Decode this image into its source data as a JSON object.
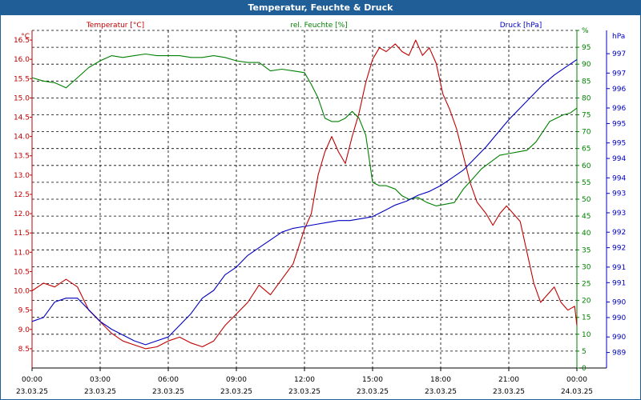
{
  "window": {
    "title": "Temperatur, Feuchte & Druck"
  },
  "colors": {
    "temperature": "#c00000",
    "humidity": "#008000",
    "pressure": "#0000c0",
    "grid": "#000000",
    "text": "#000000",
    "title_bg": "#1f5e96"
  },
  "chart_data": {
    "type": "line",
    "title": "Temperatur, Feuchte & Druck",
    "grid": true,
    "x_ticks": [
      {
        "h": 0,
        "time": "00:00",
        "date": "23.03.25"
      },
      {
        "h": 3,
        "time": "03:00",
        "date": "23.03.25"
      },
      {
        "h": 6,
        "time": "06:00",
        "date": "23.03.25"
      },
      {
        "h": 9,
        "time": "09:00",
        "date": "23.03.25"
      },
      {
        "h": 12,
        "time": "12:00",
        "date": "23.03.25"
      },
      {
        "h": 15,
        "time": "15:00",
        "date": "23.03.25"
      },
      {
        "h": 18,
        "time": "18:00",
        "date": "23.03.25"
      },
      {
        "h": 21,
        "time": "21:00",
        "date": "23.03.25"
      },
      {
        "h": 24,
        "time": "00:00",
        "date": "24.03.25"
      }
    ],
    "axes": {
      "temperature": {
        "label": "Temperatur [°C]",
        "unit": "°C",
        "range": [
          8.0,
          16.75
        ],
        "ticks": [
          "8.5",
          "9.0",
          "9.5",
          "10.0",
          "10.5",
          "11.0",
          "11.5",
          "12.0",
          "12.5",
          "13.0",
          "13.5",
          "14.0",
          "14.5",
          "15.0",
          "15.5",
          "16.0",
          "16.5"
        ],
        "tick_values": [
          8.5,
          9.0,
          9.5,
          10.0,
          10.5,
          11.0,
          11.5,
          12.0,
          12.5,
          13.0,
          13.5,
          14.0,
          14.5,
          15.0,
          15.5,
          16.0,
          16.5
        ]
      },
      "humidity": {
        "label": "rel. Feuchte [%]",
        "unit": "%",
        "range": [
          0,
          100
        ],
        "ticks": [
          "0",
          "5",
          "10",
          "15",
          "20",
          "25",
          "30",
          "35",
          "40",
          "45",
          "50",
          "55",
          "60",
          "65",
          "70",
          "75",
          "80",
          "85",
          "90",
          "95",
          "%"
        ],
        "tick_values": [
          0,
          5,
          10,
          15,
          20,
          25,
          30,
          35,
          40,
          45,
          50,
          55,
          60,
          65,
          70,
          75,
          80,
          85,
          90,
          95,
          100
        ]
      },
      "pressure": {
        "label": "Druck [hPa]",
        "unit": "hPa",
        "range": [
          988.8,
          997.5
        ],
        "ticks": [
          "989",
          "990",
          "990",
          "990",
          "991",
          "991",
          "992",
          "992",
          "993",
          "993",
          "994",
          "994",
          "995",
          "995",
          "996",
          "996",
          "997",
          "997"
        ],
        "tick_values": [
          989.2,
          989.6,
          990.1,
          990.5,
          991.0,
          991.4,
          991.9,
          992.3,
          992.8,
          993.3,
          993.7,
          994.2,
          994.6,
          995.1,
          995.5,
          996.0,
          996.4,
          996.9
        ],
        "unit_label": "hPa"
      }
    },
    "series": [
      {
        "name": "Temperatur",
        "axis": "temperature",
        "points": [
          [
            0,
            10.0
          ],
          [
            0.5,
            10.2
          ],
          [
            1,
            10.1
          ],
          [
            1.5,
            10.3
          ],
          [
            2,
            10.1
          ],
          [
            2.5,
            9.5
          ],
          [
            3,
            9.2
          ],
          [
            3.5,
            8.9
          ],
          [
            4,
            8.7
          ],
          [
            4.5,
            8.6
          ],
          [
            5,
            8.5
          ],
          [
            5.5,
            8.55
          ],
          [
            6,
            8.7
          ],
          [
            6.5,
            8.8
          ],
          [
            7,
            8.65
          ],
          [
            7.5,
            8.55
          ],
          [
            8,
            8.7
          ],
          [
            8.5,
            9.1
          ],
          [
            9,
            9.4
          ],
          [
            9.5,
            9.7
          ],
          [
            10,
            10.15
          ],
          [
            10.5,
            9.9
          ],
          [
            11,
            10.3
          ],
          [
            11.5,
            10.7
          ],
          [
            12,
            11.6
          ],
          [
            12.3,
            12.0
          ],
          [
            12.6,
            13.0
          ],
          [
            12.9,
            13.6
          ],
          [
            13.2,
            14.0
          ],
          [
            13.5,
            13.6
          ],
          [
            13.8,
            13.3
          ],
          [
            14.1,
            14.0
          ],
          [
            14.4,
            14.6
          ],
          [
            14.7,
            15.4
          ],
          [
            15,
            16.0
          ],
          [
            15.3,
            16.3
          ],
          [
            15.6,
            16.2
          ],
          [
            16,
            16.4
          ],
          [
            16.3,
            16.2
          ],
          [
            16.6,
            16.1
          ],
          [
            16.9,
            16.5
          ],
          [
            17.2,
            16.1
          ],
          [
            17.5,
            16.3
          ],
          [
            17.8,
            15.9
          ],
          [
            18.1,
            15.1
          ],
          [
            18.4,
            14.7
          ],
          [
            18.7,
            14.2
          ],
          [
            19,
            13.5
          ],
          [
            19.3,
            12.8
          ],
          [
            19.6,
            12.3
          ],
          [
            20,
            12.0
          ],
          [
            20.3,
            11.7
          ],
          [
            20.6,
            12.0
          ],
          [
            20.9,
            12.2
          ],
          [
            21.2,
            12.0
          ],
          [
            21.5,
            11.8
          ],
          [
            21.8,
            11.0
          ],
          [
            22.1,
            10.2
          ],
          [
            22.4,
            9.7
          ],
          [
            22.7,
            9.9
          ],
          [
            23,
            10.1
          ],
          [
            23.3,
            9.7
          ],
          [
            23.6,
            9.5
          ],
          [
            23.9,
            9.6
          ],
          [
            24,
            9.1
          ]
        ]
      },
      {
        "name": "rel. Feuchte",
        "axis": "humidity",
        "points": [
          [
            0,
            86
          ],
          [
            0.5,
            85
          ],
          [
            1,
            84.5
          ],
          [
            1.5,
            83
          ],
          [
            2,
            86
          ],
          [
            2.5,
            89
          ],
          [
            3,
            91
          ],
          [
            3.5,
            92.5
          ],
          [
            4,
            92
          ],
          [
            4.5,
            92.5
          ],
          [
            5,
            93
          ],
          [
            5.5,
            92.5
          ],
          [
            6,
            92.5
          ],
          [
            6.5,
            92.5
          ],
          [
            7,
            92
          ],
          [
            7.5,
            92
          ],
          [
            8,
            92.5
          ],
          [
            8.5,
            92
          ],
          [
            9,
            91
          ],
          [
            9.5,
            90.5
          ],
          [
            10,
            90.5
          ],
          [
            10.5,
            88
          ],
          [
            11,
            88.5
          ],
          [
            11.5,
            88
          ],
          [
            12,
            87.5
          ],
          [
            12.3,
            84
          ],
          [
            12.6,
            80
          ],
          [
            12.9,
            74
          ],
          [
            13.2,
            73
          ],
          [
            13.5,
            73
          ],
          [
            13.8,
            74
          ],
          [
            14.1,
            76
          ],
          [
            14.4,
            74
          ],
          [
            14.7,
            69
          ],
          [
            15,
            55
          ],
          [
            15.3,
            54
          ],
          [
            15.6,
            54
          ],
          [
            16,
            53
          ],
          [
            16.3,
            51
          ],
          [
            16.6,
            50
          ],
          [
            17,
            50.5
          ],
          [
            17.4,
            49
          ],
          [
            17.8,
            48
          ],
          [
            18.2,
            48.5
          ],
          [
            18.6,
            49
          ],
          [
            19,
            53
          ],
          [
            19.4,
            56
          ],
          [
            19.8,
            59
          ],
          [
            20.2,
            61
          ],
          [
            20.6,
            63
          ],
          [
            21,
            63.5
          ],
          [
            21.4,
            64
          ],
          [
            21.8,
            64.5
          ],
          [
            22.2,
            67
          ],
          [
            22.5,
            70
          ],
          [
            22.8,
            73
          ],
          [
            23.1,
            74
          ],
          [
            23.4,
            75
          ],
          [
            23.7,
            75.5
          ],
          [
            24,
            77
          ]
        ]
      },
      {
        "name": "Druck",
        "axis": "pressure",
        "points": [
          [
            0,
            990.0
          ],
          [
            0.5,
            990.1
          ],
          [
            1,
            990.5
          ],
          [
            1.5,
            990.6
          ],
          [
            2,
            990.6
          ],
          [
            2.5,
            990.3
          ],
          [
            3,
            990.0
          ],
          [
            3.5,
            989.8
          ],
          [
            4,
            989.65
          ],
          [
            4.5,
            989.5
          ],
          [
            5,
            989.4
          ],
          [
            5.5,
            989.5
          ],
          [
            6,
            989.6
          ],
          [
            6.5,
            989.9
          ],
          [
            7,
            990.2
          ],
          [
            7.5,
            990.6
          ],
          [
            8,
            990.8
          ],
          [
            8.5,
            991.2
          ],
          [
            9,
            991.4
          ],
          [
            9.5,
            991.7
          ],
          [
            10,
            991.9
          ],
          [
            10.5,
            992.1
          ],
          [
            11,
            992.3
          ],
          [
            11.5,
            992.4
          ],
          [
            12,
            992.45
          ],
          [
            12.5,
            992.5
          ],
          [
            13,
            992.55
          ],
          [
            13.5,
            992.6
          ],
          [
            14,
            992.6
          ],
          [
            14.5,
            992.65
          ],
          [
            15,
            992.7
          ],
          [
            15.5,
            992.85
          ],
          [
            16,
            993.0
          ],
          [
            16.5,
            993.1
          ],
          [
            17,
            993.25
          ],
          [
            17.5,
            993.35
          ],
          [
            18,
            993.5
          ],
          [
            18.5,
            993.7
          ],
          [
            19,
            993.9
          ],
          [
            19.5,
            994.2
          ],
          [
            20,
            994.5
          ],
          [
            20.5,
            994.85
          ],
          [
            21,
            995.2
          ],
          [
            21.5,
            995.5
          ],
          [
            22,
            995.8
          ],
          [
            22.5,
            996.1
          ],
          [
            23,
            996.35
          ],
          [
            23.5,
            996.55
          ],
          [
            24,
            996.75
          ]
        ]
      }
    ]
  }
}
